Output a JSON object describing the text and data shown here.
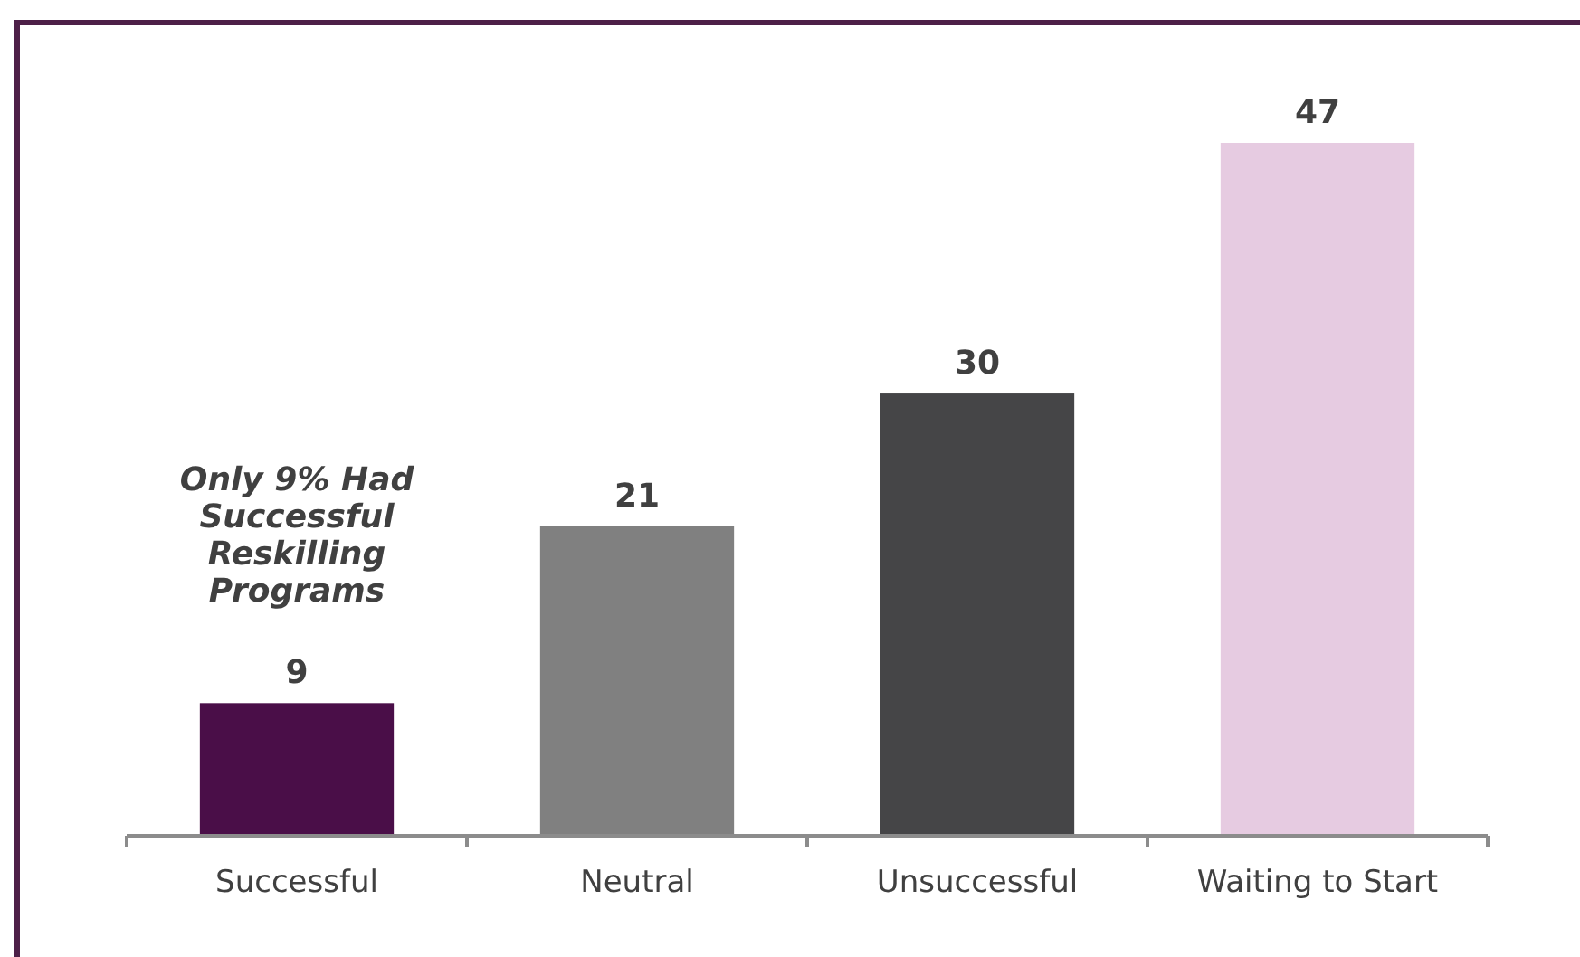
{
  "chart_data": {
    "type": "bar",
    "categories": [
      "Successful",
      "Neutral",
      "Unsuccessful",
      "Waiting to Start"
    ],
    "values": [
      9,
      21,
      30,
      47
    ],
    "colors": [
      "#4a0e48",
      "#808080",
      "#454547",
      "#e6cbe1"
    ],
    "data_labels": true,
    "annotations": [
      "Only 9% Had Successful Reskilling Programs"
    ]
  }
}
